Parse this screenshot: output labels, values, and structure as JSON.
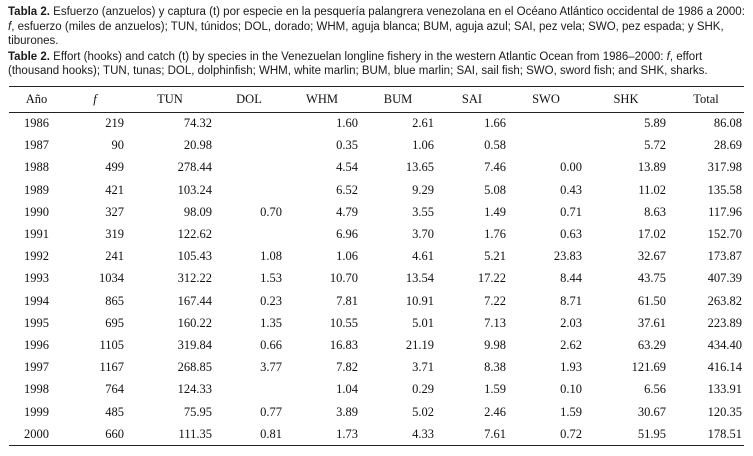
{
  "caption_es": {
    "label": "Tabla 2.",
    "part1": " Esfuerzo (anzuelos) y captura (t) por especie en la pesquería palangrera venezolana en el Océano Atlántico occidental de 1986 a 2000: ",
    "f_symbol": "f",
    "part2": ", esfuerzo (miles de anzuelos); TUN, túnidos; DOL, dorado; WHM, aguja blanca; BUM, aguja azul; SAI, pez vela; SWO, pez espada; y SHK, tiburones."
  },
  "caption_en": {
    "label": "Table 2.",
    "part1": " Effort (hooks) and catch (t) by species in the Venezuelan longline fishery in the western Atlantic Ocean from 1986–2000: ",
    "f_symbol": "f",
    "part2": ", effort (thousand hooks); TUN, tunas; DOL, dolphinfish; WHM, white marlin; BUM, blue marlin; SAI, sail fish; SWO, sword fish; and SHK, sharks."
  },
  "table": {
    "columns": [
      "Año",
      "f",
      "TUN",
      "DOL",
      "WHM",
      "BUM",
      "SAI",
      "SWO",
      "SHK",
      "Total"
    ],
    "italic_column_index": 1,
    "rows": [
      [
        "1986",
        "219",
        "74.32",
        "",
        "1.60",
        "2.61",
        "1.66",
        "",
        "5.89",
        "86.08"
      ],
      [
        "1987",
        "90",
        "20.98",
        "",
        "0.35",
        "1.06",
        "0.58",
        "",
        "5.72",
        "28.69"
      ],
      [
        "1988",
        "499",
        "278.44",
        "",
        "4.54",
        "13.65",
        "7.46",
        "0.00",
        "13.89",
        "317.98"
      ],
      [
        "1989",
        "421",
        "103.24",
        "",
        "6.52",
        "9.29",
        "5.08",
        "0.43",
        "11.02",
        "135.58"
      ],
      [
        "1990",
        "327",
        "98.09",
        "0.70",
        "4.79",
        "3.55",
        "1.49",
        "0.71",
        "8.63",
        "117.96"
      ],
      [
        "1991",
        "319",
        "122.62",
        "",
        "6.96",
        "3.70",
        "1.76",
        "0.63",
        "17.02",
        "152.70"
      ],
      [
        "1992",
        "241",
        "105.43",
        "1.08",
        "1.06",
        "4.61",
        "5.21",
        "23.83",
        "32.67",
        "173.87"
      ],
      [
        "1993",
        "1034",
        "312.22",
        "1.53",
        "10.70",
        "13.54",
        "17.22",
        "8.44",
        "43.75",
        "407.39"
      ],
      [
        "1994",
        "865",
        "167.44",
        "0.23",
        "7.81",
        "10.91",
        "7.22",
        "8.71",
        "61.50",
        "263.82"
      ],
      [
        "1995",
        "695",
        "160.22",
        "1.35",
        "10.55",
        "5.01",
        "7.13",
        "2.03",
        "37.61",
        "223.89"
      ],
      [
        "1996",
        "1105",
        "319.84",
        "0.66",
        "16.83",
        "21.19",
        "9.98",
        "2.62",
        "63.29",
        "434.40"
      ],
      [
        "1997",
        "1167",
        "268.85",
        "3.77",
        "7.82",
        "3.71",
        "8.38",
        "1.93",
        "121.69",
        "416.14"
      ],
      [
        "1998",
        "764",
        "124.33",
        "",
        "1.04",
        "0.29",
        "1.59",
        "0.10",
        "6.56",
        "133.91"
      ],
      [
        "1999",
        "485",
        "75.95",
        "0.77",
        "3.89",
        "5.02",
        "2.46",
        "1.59",
        "30.67",
        "120.35"
      ],
      [
        "2000",
        "660",
        "111.35",
        "0.81",
        "1.73",
        "4.33",
        "7.61",
        "0.72",
        "51.95",
        "178.51"
      ]
    ]
  }
}
